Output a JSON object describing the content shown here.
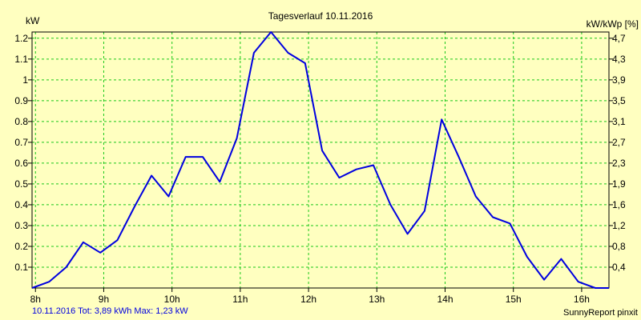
{
  "chart_data": {
    "type": "line",
    "title": "Tagesverlauf 10.11.2016",
    "ylabel": "kW",
    "y2label": "kW/kWp [%]",
    "xlabel": "",
    "x_ticks": [
      "8h",
      "9h",
      "10h",
      "11h",
      "12h",
      "13h",
      "14h",
      "15h",
      "16h"
    ],
    "x_tick_hours": [
      8,
      9,
      10,
      11,
      12,
      13,
      14,
      15,
      16
    ],
    "xlim": [
      7.95,
      16.4
    ],
    "ylim": [
      0,
      1.23
    ],
    "y_ticks": [
      0.1,
      0.2,
      0.3,
      0.4,
      0.5,
      0.6,
      0.7,
      0.8,
      0.9,
      1,
      1.1,
      1.2
    ],
    "y_tick_labels": [
      "0.1",
      "0.2",
      "0.3",
      "0.4",
      "0.5",
      "0.6",
      "0.7",
      "0.8",
      "0.9",
      "1",
      "1.1",
      "1.2"
    ],
    "y2_ticks": [
      "0,4",
      "0,8",
      "1,2",
      "1,6",
      "1,9",
      "2,3",
      "2,7",
      "3,1",
      "3,5",
      "3,9",
      "4,3",
      "4,7"
    ],
    "grid": true,
    "series": [
      {
        "color": "#0000e0",
        "x": [
          7.95,
          8.2,
          8.45,
          8.7,
          8.95,
          9.2,
          9.45,
          9.7,
          9.95,
          10.2,
          10.45,
          10.7,
          10.95,
          11.2,
          11.45,
          11.7,
          11.95,
          12.2,
          12.45,
          12.7,
          12.95,
          13.2,
          13.45,
          13.7,
          13.95,
          14.2,
          14.45,
          14.7,
          14.95,
          15.2,
          15.45,
          15.7,
          15.95,
          16.2,
          16.4
        ],
        "y": [
          0,
          0.03,
          0.1,
          0.22,
          0.17,
          0.23,
          0.39,
          0.54,
          0.44,
          0.63,
          0.63,
          0.51,
          0.72,
          1.13,
          1.23,
          1.13,
          1.08,
          0.66,
          0.53,
          0.57,
          0.59,
          0.4,
          0.26,
          0.37,
          0.81,
          0.63,
          0.44,
          0.34,
          0.31,
          0.15,
          0.04,
          0.14,
          0.03,
          0,
          0
        ]
      }
    ]
  },
  "footer": {
    "summary": "10.11.2016 Tot: 3,89 kWh Max: 1,23 kW",
    "credit": "SunnyReport pinxit"
  }
}
